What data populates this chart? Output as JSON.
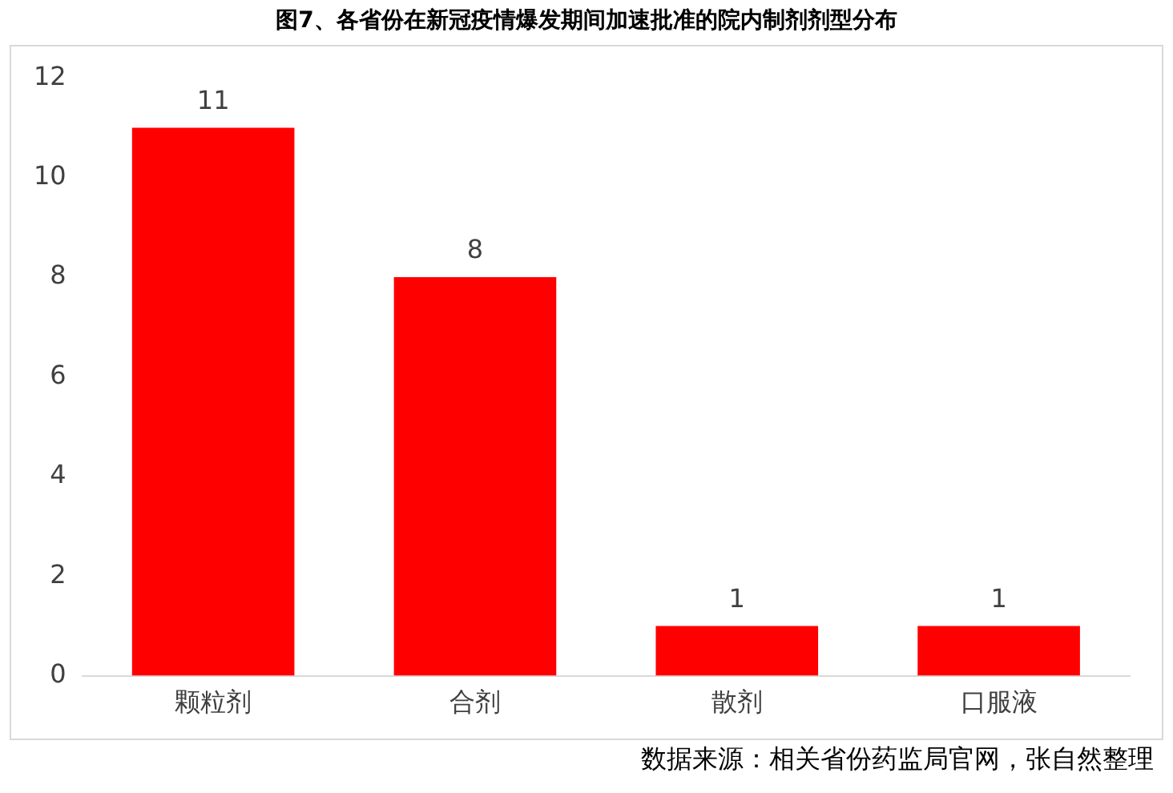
{
  "chart_data": {
    "type": "bar",
    "title": "图7、各省份在新冠疫情爆发期间加速批准的院内制剂剂型分布",
    "categories": [
      "颗粒剂",
      "合剂",
      "散剂",
      "口服液"
    ],
    "values": [
      11,
      8,
      1,
      1
    ],
    "color": "#ff0000",
    "ylim": [
      0,
      12
    ],
    "yticks": [
      0,
      2,
      4,
      6,
      8,
      10,
      12
    ],
    "grid": false,
    "data_labels": true,
    "legend": false,
    "annotations": [
      "数据来源：相关省份药监局官网，张自然整理"
    ]
  }
}
